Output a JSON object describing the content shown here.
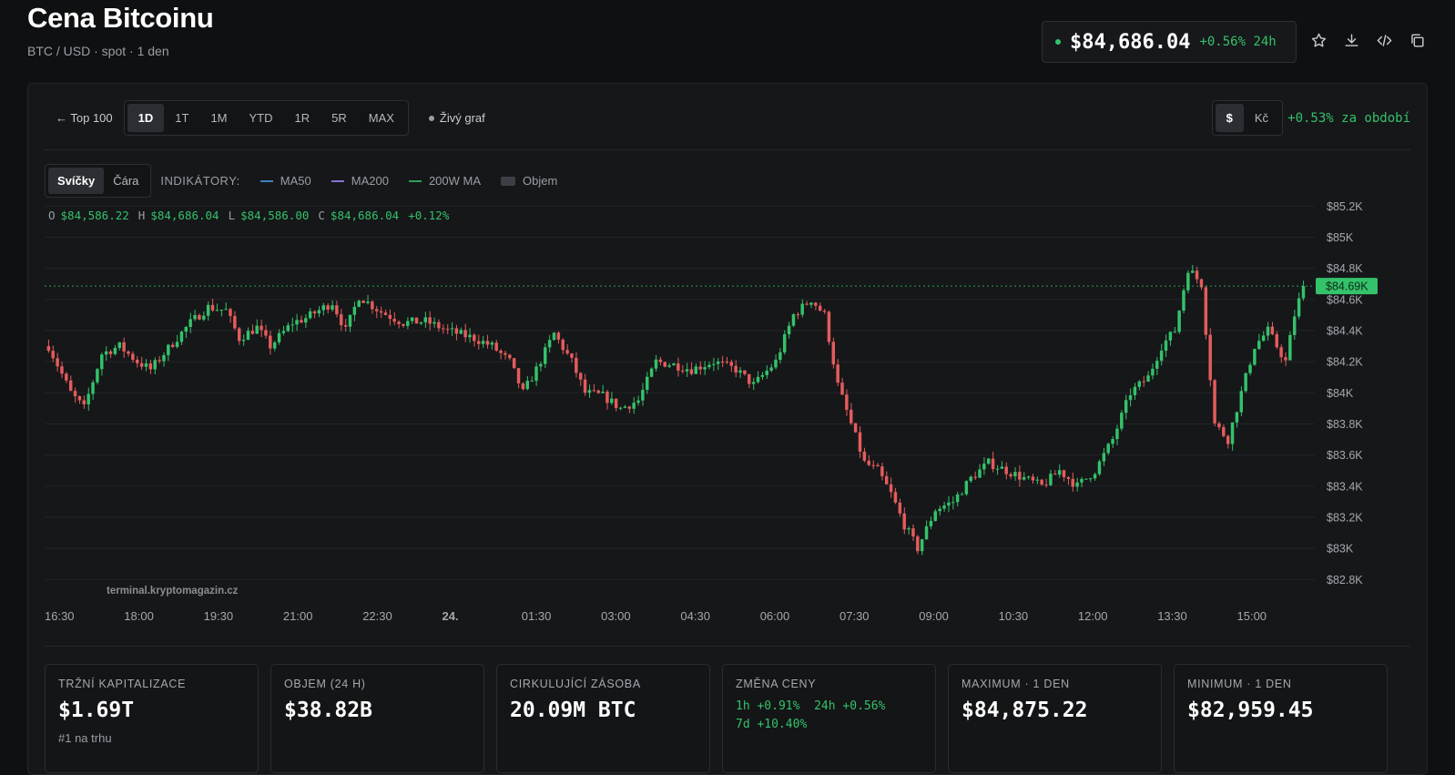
{
  "header": {
    "title": "Cena Bitcoinu",
    "subtitle": "BTC / USD · spot · 1 den",
    "price": "$84,686.04",
    "change_24h": "+0.56% 24h",
    "icons": [
      "star-icon",
      "download-icon",
      "code-icon",
      "copy-icon"
    ]
  },
  "toolbar": {
    "back_label": "← Top 100",
    "ranges": [
      "1D",
      "1T",
      "1M",
      "YTD",
      "1R",
      "5R",
      "MAX"
    ],
    "active_range": "1D",
    "live_label": "Živý graf",
    "currencies": [
      "$",
      "Kč"
    ],
    "active_currency": "$",
    "period_change": "+0.53% za období"
  },
  "chart_controls": {
    "types": [
      "Svíčky",
      "Čára"
    ],
    "active_type": "Svíčky",
    "indicators_label": "INDIKÁTORY:",
    "indicators": [
      {
        "label": "MA50",
        "color": "#3b82c4"
      },
      {
        "label": "MA200",
        "color": "#8b6fd6"
      },
      {
        "label": "200W MA",
        "color": "#2f9e5a"
      },
      {
        "label": "Objem",
        "color": "#3c3f45"
      }
    ]
  },
  "ohlc": {
    "o_label": "O",
    "o": "$84,586.22",
    "h_label": "H",
    "h": "$84,686.04",
    "l_label": "L",
    "l": "$84,586.00",
    "c_label": "C",
    "c": "$84,686.04",
    "pct": "+0.12%"
  },
  "chart_data": {
    "type": "candlestick",
    "watermark": "terminal.kryptomagazin.cz",
    "current_price_label": "$84.69K",
    "current_price": 84686.04,
    "y_ticks": [
      85200,
      85000,
      84800,
      84600,
      84400,
      84200,
      84000,
      83800,
      83600,
      83400,
      83200,
      83000,
      82800
    ],
    "y_tick_labels": [
      "$85.2K",
      "$85K",
      "$84.8K",
      "$84.6K",
      "$84.4K",
      "$84.2K",
      "$84K",
      "$83.8K",
      "$83.6K",
      "$83.4K",
      "$83.2K",
      "$83K",
      "$82.8K"
    ],
    "ylim": [
      82790,
      85190
    ],
    "x_tick_labels": [
      "16:30",
      "18:00",
      "19:30",
      "21:00",
      "22:30",
      "24.",
      "01:30",
      "03:00",
      "04:30",
      "06:00",
      "07:30",
      "09:00",
      "10:30",
      "12:00",
      "13:30",
      "15:00"
    ],
    "x_bold": "24.",
    "close_path": [
      [
        0,
        84300
      ],
      [
        5,
        84000
      ],
      [
        8,
        83900
      ],
      [
        12,
        84250
      ],
      [
        16,
        84300
      ],
      [
        20,
        84200
      ],
      [
        23,
        84150
      ],
      [
        28,
        84320
      ],
      [
        32,
        84450
      ],
      [
        36,
        84550
      ],
      [
        40,
        84530
      ],
      [
        43,
        84350
      ],
      [
        47,
        84420
      ],
      [
        50,
        84300
      ],
      [
        55,
        84450
      ],
      [
        58,
        84480
      ],
      [
        64,
        84580
      ],
      [
        67,
        84400
      ],
      [
        70,
        84620
      ],
      [
        75,
        84520
      ],
      [
        80,
        84450
      ],
      [
        85,
        84460
      ],
      [
        90,
        84400
      ],
      [
        96,
        84350
      ],
      [
        100,
        84300
      ],
      [
        104,
        84200
      ],
      [
        107,
        84000
      ],
      [
        110,
        84150
      ],
      [
        114,
        84380
      ],
      [
        118,
        84200
      ],
      [
        121,
        84000
      ],
      [
        125,
        83980
      ],
      [
        129,
        83900
      ],
      [
        133,
        83950
      ],
      [
        137,
        84200
      ],
      [
        141,
        84180
      ],
      [
        145,
        84150
      ],
      [
        150,
        84200
      ],
      [
        155,
        84150
      ],
      [
        159,
        84050
      ],
      [
        164,
        84200
      ],
      [
        168,
        84500
      ],
      [
        172,
        84600
      ],
      [
        175,
        84500
      ],
      [
        178,
        84050
      ],
      [
        181,
        83800
      ],
      [
        184,
        83550
      ],
      [
        187,
        83500
      ],
      [
        190,
        83350
      ],
      [
        193,
        83150
      ],
      [
        196,
        83000
      ],
      [
        200,
        83250
      ],
      [
        204,
        83300
      ],
      [
        208,
        83450
      ],
      [
        212,
        83550
      ],
      [
        216,
        83500
      ],
      [
        220,
        83450
      ],
      [
        224,
        83400
      ],
      [
        228,
        83500
      ],
      [
        232,
        83400
      ],
      [
        236,
        83500
      ],
      [
        240,
        83700
      ],
      [
        244,
        84000
      ],
      [
        248,
        84100
      ],
      [
        251,
        84300
      ],
      [
        254,
        84400
      ],
      [
        257,
        84800
      ],
      [
        260,
        84700
      ],
      [
        263,
        83800
      ],
      [
        266,
        83700
      ],
      [
        269,
        84000
      ],
      [
        272,
        84300
      ],
      [
        275,
        84400
      ],
      [
        277,
        84300
      ],
      [
        279,
        84200
      ],
      [
        281,
        84500
      ],
      [
        283,
        84686
      ]
    ]
  },
  "stats": [
    {
      "label": "TRŽNÍ KAPITALIZACE",
      "value": "$1.69T",
      "sub": "#1 na trhu"
    },
    {
      "label": "OBJEM (24 H)",
      "value": "$38.82B"
    },
    {
      "label": "CIRKULUJÍCÍ ZÁSOBA",
      "value": "20.09M BTC"
    },
    {
      "label": "ZMĚNA CENY",
      "changes": [
        "1h +0.91%",
        "24h +0.56%",
        "7d +10.40%"
      ]
    },
    {
      "label": "MAXIMUM · 1 DEN",
      "value": "$84,875.22"
    },
    {
      "label": "MINIMUM · 1 DEN",
      "value": "$82,959.45"
    }
  ],
  "colors": {
    "up": "#34c26a",
    "down": "#e45c5c",
    "bg": "#161719"
  }
}
